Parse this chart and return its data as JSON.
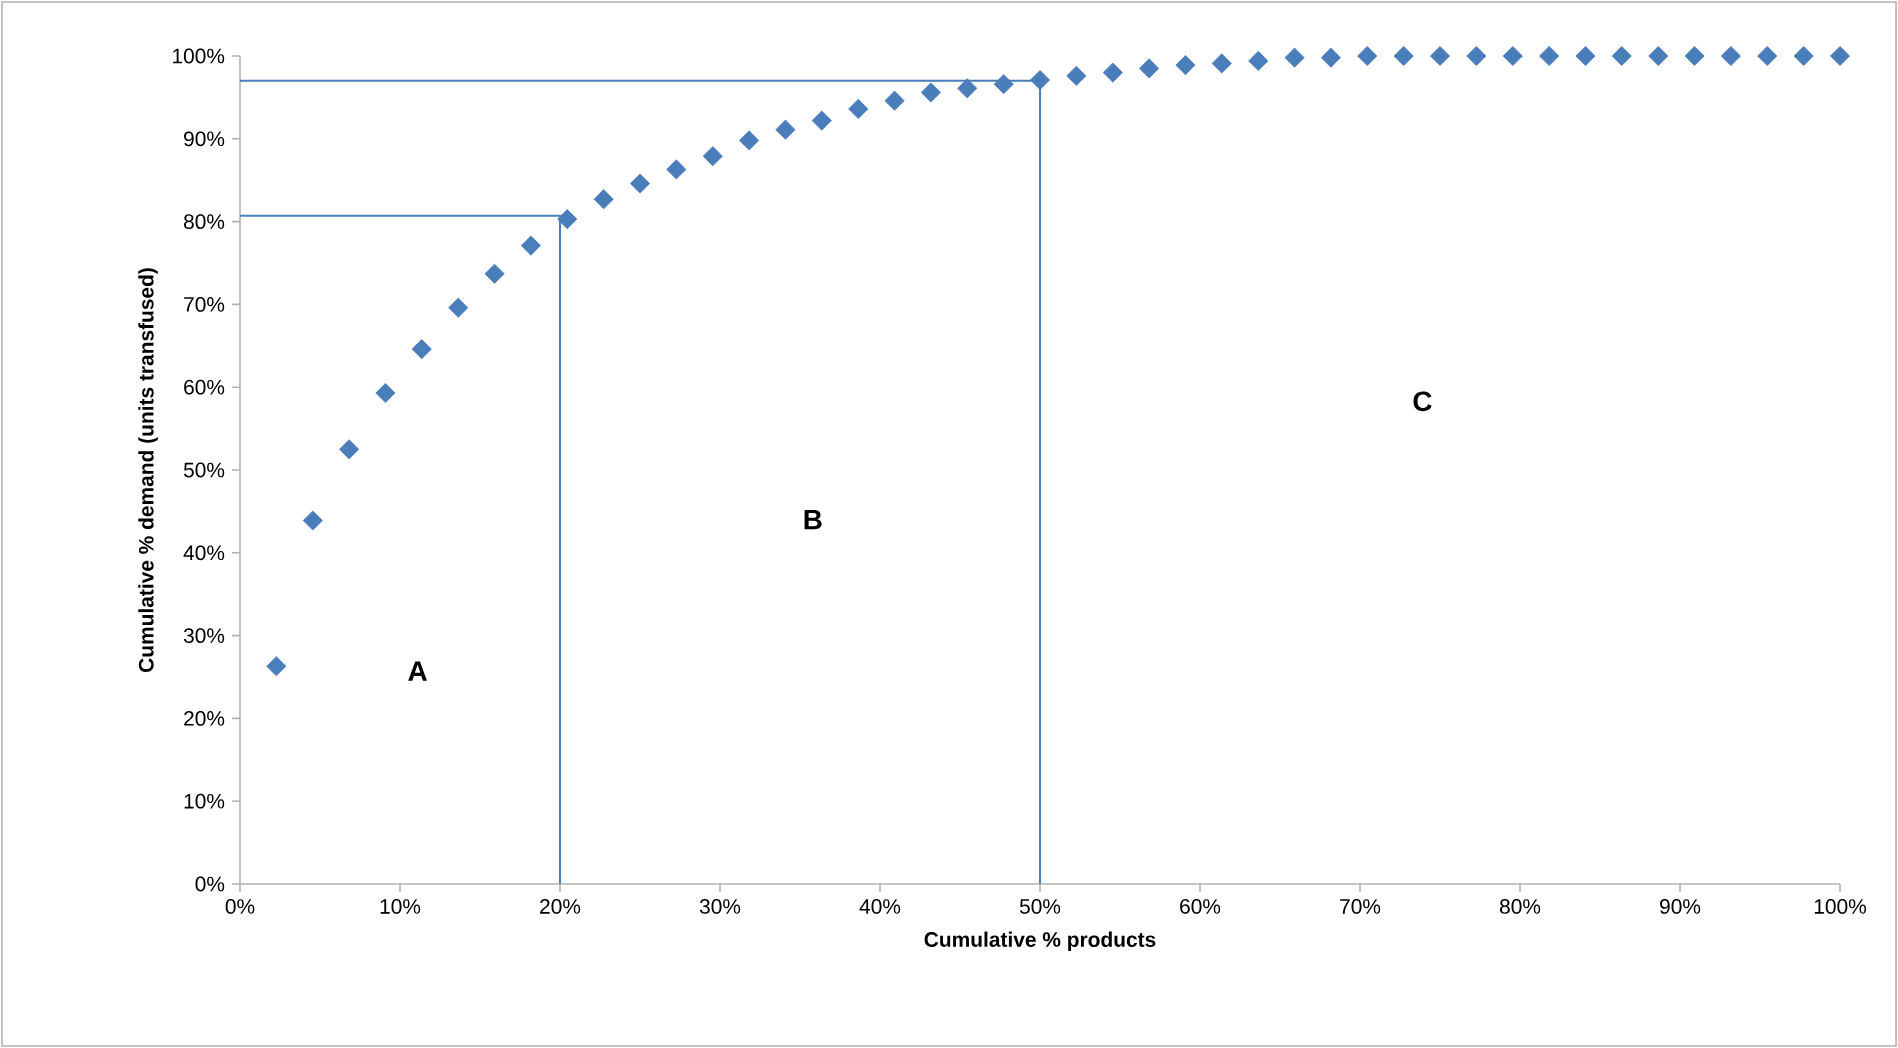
{
  "chart_data": {
    "type": "scatter",
    "xlabel": "Cumulative % products",
    "ylabel": "Cumulative % demand (units transfused)",
    "xlim": [
      0,
      100
    ],
    "ylim": [
      0,
      100
    ],
    "xticks": [
      {
        "value": 0,
        "label": "0%"
      },
      {
        "value": 10,
        "label": "10%"
      },
      {
        "value": 20,
        "label": "20%"
      },
      {
        "value": 30,
        "label": "30%"
      },
      {
        "value": 40,
        "label": "40%"
      },
      {
        "value": 50,
        "label": "50%"
      },
      {
        "value": 60,
        "label": "60%"
      },
      {
        "value": 70,
        "label": "70%"
      },
      {
        "value": 80,
        "label": "80%"
      },
      {
        "value": 90,
        "label": "90%"
      },
      {
        "value": 100,
        "label": "100%"
      }
    ],
    "yticks": [
      {
        "value": 0,
        "label": "0%"
      },
      {
        "value": 10,
        "label": "10%"
      },
      {
        "value": 20,
        "label": "20%"
      },
      {
        "value": 30,
        "label": "30%"
      },
      {
        "value": 40,
        "label": "40%"
      },
      {
        "value": 50,
        "label": "50%"
      },
      {
        "value": 60,
        "label": "60%"
      },
      {
        "value": 70,
        "label": "70%"
      },
      {
        "value": 80,
        "label": "80%"
      },
      {
        "value": 90,
        "label": "90%"
      },
      {
        "value": 100,
        "label": "100%"
      }
    ],
    "grid": false,
    "marker": "diamond",
    "series": [
      {
        "color": "#4a7ebb",
        "x": [
          2.27,
          4.55,
          6.82,
          9.09,
          11.36,
          13.64,
          15.91,
          18.18,
          20.45,
          22.73,
          25.0,
          27.27,
          29.55,
          31.82,
          34.09,
          36.36,
          38.64,
          40.91,
          43.18,
          45.45,
          47.73,
          50.0,
          52.27,
          54.55,
          56.82,
          59.09,
          61.36,
          63.64,
          65.91,
          68.18,
          70.45,
          72.73,
          75.0,
          77.27,
          79.55,
          81.82,
          84.09,
          86.36,
          88.64,
          90.91,
          93.18,
          95.45,
          97.73,
          100.0
        ],
        "values": [
          26.3,
          43.9,
          52.5,
          59.3,
          64.6,
          69.6,
          73.7,
          77.1,
          80.3,
          82.7,
          84.6,
          86.3,
          87.9,
          89.8,
          91.1,
          92.2,
          93.6,
          94.6,
          95.6,
          96.1,
          96.6,
          97.1,
          97.6,
          98.0,
          98.5,
          98.9,
          99.1,
          99.4,
          99.8,
          99.8,
          100,
          100,
          100,
          100,
          100,
          100,
          100,
          100,
          100,
          100,
          100,
          100,
          100,
          100
        ]
      },
      {
        "type": "line",
        "marker": "none",
        "color": "#4a7ebb",
        "x": [
          0,
          20,
          20
        ],
        "values": [
          80.7,
          80.7,
          0
        ]
      },
      {
        "type": "line",
        "marker": "none",
        "color": "#4a7ebb",
        "x": [
          0,
          50,
          50
        ],
        "values": [
          97,
          97,
          0
        ]
      }
    ],
    "annotations": [
      "A",
      "B",
      "C"
    ]
  }
}
